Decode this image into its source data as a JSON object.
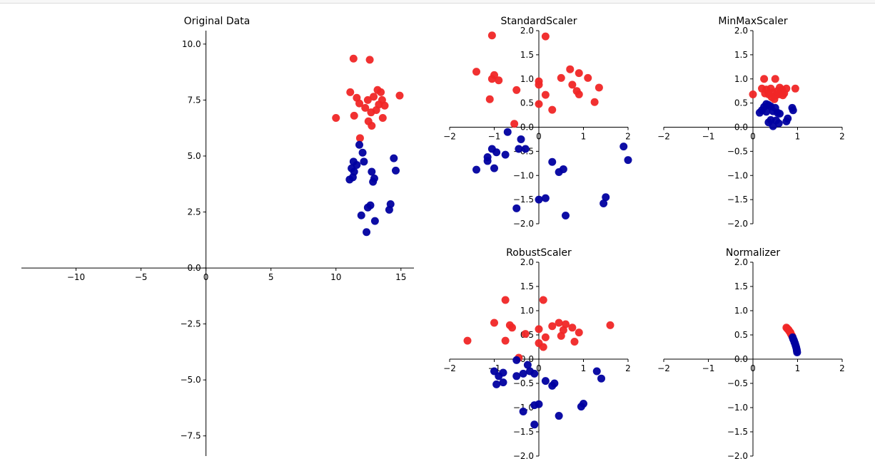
{
  "colors": {
    "red": "#f02626",
    "blue": "#0000a0",
    "axis": "#000000"
  },
  "chart_data": [
    {
      "type": "scatter",
      "title": "Original Data",
      "grid": false,
      "xlim": [
        -14.2,
        16
      ],
      "ylim": [
        -8.4,
        10.6
      ],
      "xticks": [
        -10,
        -5,
        0,
        5,
        10,
        15
      ],
      "xtick_labels": [
        "−10",
        "−5",
        "0",
        "5",
        "10",
        "15"
      ],
      "yticks": [
        -7.5,
        -5.0,
        -2.5,
        0.0,
        2.5,
        5.0,
        7.5,
        10.0
      ],
      "ytick_labels": [
        "−7.5",
        "−5.0",
        "−2.5",
        "0.0",
        "2.5",
        "5.0",
        "7.5",
        "10.0"
      ],
      "series": [
        {
          "color": "red",
          "points": [
            [
              11.35,
              9.35
            ],
            [
              12.6,
              9.3
            ],
            [
              13.2,
              7.95
            ],
            [
              13.45,
              7.85
            ],
            [
              14.9,
              7.7
            ],
            [
              12.9,
              7.65
            ],
            [
              11.1,
              7.85
            ],
            [
              11.6,
              7.6
            ],
            [
              12.45,
              7.5
            ],
            [
              13.55,
              7.5
            ],
            [
              11.8,
              7.35
            ],
            [
              13.3,
              7.3
            ],
            [
              13.75,
              7.25
            ],
            [
              12.25,
              7.15
            ],
            [
              13.1,
              7.05
            ],
            [
              12.7,
              6.95
            ],
            [
              11.4,
              6.8
            ],
            [
              10.0,
              6.7
            ],
            [
              13.6,
              6.7
            ],
            [
              12.5,
              6.55
            ],
            [
              12.75,
              6.35
            ],
            [
              11.85,
              5.8
            ]
          ]
        },
        {
          "color": "blue",
          "points": [
            [
              11.8,
              5.5
            ],
            [
              12.05,
              5.15
            ],
            [
              14.45,
              4.9
            ],
            [
              11.35,
              4.75
            ],
            [
              12.15,
              4.75
            ],
            [
              11.6,
              4.6
            ],
            [
              11.2,
              4.45
            ],
            [
              11.4,
              4.3
            ],
            [
              12.75,
              4.3
            ],
            [
              14.6,
              4.35
            ],
            [
              11.3,
              4.05
            ],
            [
              11.05,
              3.95
            ],
            [
              12.95,
              4.0
            ],
            [
              12.85,
              3.85
            ],
            [
              14.2,
              2.85
            ],
            [
              12.65,
              2.8
            ],
            [
              12.45,
              2.7
            ],
            [
              14.1,
              2.6
            ],
            [
              11.95,
              2.35
            ],
            [
              13.0,
              2.1
            ],
            [
              12.35,
              1.6
            ]
          ]
        }
      ]
    },
    {
      "type": "scatter",
      "title": "StandardScaler",
      "grid": false,
      "xlim": [
        -2,
        2
      ],
      "ylim": [
        -2,
        2
      ],
      "xticks": [
        -2,
        -1,
        0,
        1,
        2
      ],
      "xtick_labels": [
        "−2",
        "−1",
        "0",
        "1",
        "2"
      ],
      "yticks": [
        -2.0,
        -1.5,
        -1.0,
        -0.5,
        0.0,
        0.5,
        1.0,
        1.5,
        2.0
      ],
      "ytick_labels": [
        "−2.0",
        "−1.5",
        "−1.0",
        "−0.5",
        "0.0",
        "0.5",
        "1.0",
        "1.5",
        "2.0"
      ],
      "series": [
        {
          "color": "red",
          "points": [
            [
              -1.05,
              1.9
            ],
            [
              0.15,
              1.88
            ],
            [
              -1.4,
              1.15
            ],
            [
              -1.0,
              1.08
            ],
            [
              0.7,
              1.2
            ],
            [
              0.9,
              1.12
            ],
            [
              -1.05,
              1.0
            ],
            [
              -0.9,
              0.97
            ],
            [
              0.5,
              1.02
            ],
            [
              1.1,
              1.02
            ],
            [
              0.0,
              0.95
            ],
            [
              0.0,
              0.88
            ],
            [
              0.75,
              0.88
            ],
            [
              0.85,
              0.75
            ],
            [
              1.35,
              0.82
            ],
            [
              -0.5,
              0.77
            ],
            [
              0.9,
              0.68
            ],
            [
              0.15,
              0.67
            ],
            [
              -1.1,
              0.58
            ],
            [
              1.25,
              0.52
            ],
            [
              0.0,
              0.48
            ],
            [
              0.3,
              0.36
            ],
            [
              -0.55,
              0.07
            ]
          ]
        },
        {
          "color": "blue",
          "points": [
            [
              -0.7,
              -0.1
            ],
            [
              -0.4,
              -0.25
            ],
            [
              -1.05,
              -0.45
            ],
            [
              -0.95,
              -0.52
            ],
            [
              -0.45,
              -0.45
            ],
            [
              -0.3,
              -0.45
            ],
            [
              -0.75,
              -0.57
            ],
            [
              -1.15,
              -0.62
            ],
            [
              -1.15,
              -0.7
            ],
            [
              1.9,
              -0.4
            ],
            [
              2.0,
              -0.68
            ],
            [
              0.3,
              -0.72
            ],
            [
              0.55,
              -0.87
            ],
            [
              0.45,
              -0.93
            ],
            [
              -1.0,
              -0.85
            ],
            [
              -1.4,
              -0.88
            ],
            [
              1.5,
              -1.45
            ],
            [
              1.45,
              -1.58
            ],
            [
              0.15,
              -1.47
            ],
            [
              0.0,
              -1.5
            ],
            [
              -0.5,
              -1.68
            ],
            [
              0.6,
              -1.83
            ]
          ]
        }
      ]
    },
    {
      "type": "scatter",
      "title": "MinMaxScaler",
      "grid": false,
      "xlim": [
        -2,
        2
      ],
      "ylim": [
        -2,
        2
      ],
      "xticks": [
        -2,
        -1,
        0,
        1,
        2
      ],
      "xtick_labels": [
        "−2",
        "−1",
        "0",
        "1",
        "2"
      ],
      "yticks": [
        -2.0,
        -1.5,
        -1.0,
        -0.5,
        0.0,
        0.5,
        1.0,
        1.5,
        2.0
      ],
      "ytick_labels": [
        "−2.0",
        "−1.5",
        "−1.0",
        "−0.5",
        "0.0",
        "0.5",
        "1.0",
        "1.5",
        "2.0"
      ],
      "series": [
        {
          "color": "red",
          "points": [
            [
              0.25,
              1.0
            ],
            [
              0.5,
              1.0
            ],
            [
              0.2,
              0.8
            ],
            [
              0.3,
              0.78
            ],
            [
              0.4,
              0.8
            ],
            [
              0.6,
              0.82
            ],
            [
              0.65,
              0.78
            ],
            [
              0.75,
              0.8
            ],
            [
              0.95,
              0.8
            ],
            [
              0.0,
              0.68
            ],
            [
              0.27,
              0.7
            ],
            [
              0.35,
              0.68
            ],
            [
              0.45,
              0.72
            ],
            [
              0.55,
              0.75
            ],
            [
              0.62,
              0.72
            ],
            [
              0.7,
              0.7
            ],
            [
              0.5,
              0.65
            ],
            [
              0.58,
              0.68
            ],
            [
              0.42,
              0.62
            ],
            [
              0.67,
              0.66
            ],
            [
              0.48,
              0.58
            ]
          ]
        },
        {
          "color": "blue",
          "points": [
            [
              0.3,
              0.48
            ],
            [
              0.35,
              0.46
            ],
            [
              0.25,
              0.42
            ],
            [
              0.4,
              0.43
            ],
            [
              0.5,
              0.4
            ],
            [
              0.2,
              0.35
            ],
            [
              0.3,
              0.32
            ],
            [
              0.15,
              0.3
            ],
            [
              0.45,
              0.33
            ],
            [
              0.55,
              0.3
            ],
            [
              0.6,
              0.28
            ],
            [
              0.88,
              0.4
            ],
            [
              0.9,
              0.35
            ],
            [
              0.4,
              0.15
            ],
            [
              0.35,
              0.1
            ],
            [
              0.52,
              0.14
            ],
            [
              0.58,
              0.08
            ],
            [
              0.75,
              0.12
            ],
            [
              0.78,
              0.18
            ],
            [
              0.45,
              0.02
            ]
          ]
        }
      ]
    },
    {
      "type": "scatter",
      "title": "RobustScaler",
      "grid": false,
      "xlim": [
        -2,
        2
      ],
      "ylim": [
        -2,
        2
      ],
      "xticks": [
        -2,
        -1,
        0,
        1,
        2
      ],
      "xtick_labels": [
        "−2",
        "−1",
        "0",
        "1",
        "2"
      ],
      "yticks": [
        -2.0,
        -1.5,
        -1.0,
        -0.5,
        0.0,
        0.5,
        1.0,
        1.5,
        2.0
      ],
      "ytick_labels": [
        "−2.0",
        "−1.5",
        "−1.0",
        "−0.5",
        "0.0",
        "0.5",
        "1.0",
        "1.5",
        "2.0"
      ],
      "series": [
        {
          "color": "red",
          "points": [
            [
              -0.75,
              1.22
            ],
            [
              0.1,
              1.22
            ],
            [
              -1.0,
              0.75
            ],
            [
              -0.65,
              0.7
            ],
            [
              -0.6,
              0.65
            ],
            [
              0.45,
              0.75
            ],
            [
              0.6,
              0.72
            ],
            [
              0.3,
              0.68
            ],
            [
              0.75,
              0.65
            ],
            [
              1.6,
              0.7
            ],
            [
              0.0,
              0.62
            ],
            [
              0.55,
              0.6
            ],
            [
              0.9,
              0.55
            ],
            [
              -0.3,
              0.52
            ],
            [
              0.5,
              0.48
            ],
            [
              0.15,
              0.45
            ],
            [
              -1.6,
              0.38
            ],
            [
              -0.75,
              0.38
            ],
            [
              0.0,
              0.33
            ],
            [
              0.8,
              0.36
            ],
            [
              0.1,
              0.25
            ],
            [
              -0.45,
              0.03
            ]
          ]
        },
        {
          "color": "blue",
          "points": [
            [
              -0.5,
              -0.02
            ],
            [
              -0.25,
              -0.12
            ],
            [
              -1.0,
              -0.25
            ],
            [
              -0.8,
              -0.28
            ],
            [
              -0.2,
              -0.25
            ],
            [
              -0.35,
              -0.3
            ],
            [
              -0.9,
              -0.35
            ],
            [
              -0.5,
              -0.35
            ],
            [
              -0.1,
              -0.3
            ],
            [
              1.3,
              -0.25
            ],
            [
              1.4,
              -0.4
            ],
            [
              0.15,
              -0.45
            ],
            [
              0.35,
              -0.5
            ],
            [
              -0.8,
              -0.48
            ],
            [
              -0.95,
              -0.52
            ],
            [
              0.3,
              -0.55
            ],
            [
              1.0,
              -0.92
            ],
            [
              0.95,
              -0.98
            ],
            [
              0.0,
              -0.93
            ],
            [
              -0.1,
              -0.95
            ],
            [
              0.45,
              -1.17
            ],
            [
              -0.35,
              -1.08
            ],
            [
              -0.1,
              -1.35
            ]
          ]
        }
      ]
    },
    {
      "type": "scatter",
      "title": "Normalizer",
      "grid": false,
      "xlim": [
        -2,
        2
      ],
      "ylim": [
        -2,
        2
      ],
      "xticks": [
        -2,
        -1,
        0,
        1,
        2
      ],
      "xtick_labels": [
        "−2",
        "−1",
        "0",
        "1",
        "2"
      ],
      "yticks": [
        -2.0,
        -1.5,
        -1.0,
        -0.5,
        0.0,
        0.5,
        1.0,
        1.5,
        2.0
      ],
      "ytick_labels": [
        "−2.0",
        "−1.5",
        "−1.0",
        "−0.5",
        "0.0",
        "0.5",
        "1.0",
        "1.5",
        "2.0"
      ],
      "series": [
        {
          "color": "red",
          "points": [
            [
              0.75,
              0.65
            ],
            [
              0.77,
              0.63
            ],
            [
              0.79,
              0.61
            ],
            [
              0.8,
              0.6
            ],
            [
              0.82,
              0.57
            ],
            [
              0.84,
              0.55
            ],
            [
              0.85,
              0.52
            ],
            [
              0.87,
              0.49
            ],
            [
              0.88,
              0.47
            ],
            [
              0.78,
              0.62
            ],
            [
              0.83,
              0.56
            ]
          ]
        },
        {
          "color": "blue",
          "points": [
            [
              0.89,
              0.45
            ],
            [
              0.9,
              0.42
            ],
            [
              0.91,
              0.4
            ],
            [
              0.92,
              0.38
            ],
            [
              0.93,
              0.35
            ],
            [
              0.94,
              0.33
            ],
            [
              0.95,
              0.3
            ],
            [
              0.96,
              0.27
            ],
            [
              0.97,
              0.24
            ],
            [
              0.98,
              0.2
            ],
            [
              0.985,
              0.17
            ],
            [
              0.99,
              0.14
            ]
          ]
        }
      ]
    }
  ]
}
